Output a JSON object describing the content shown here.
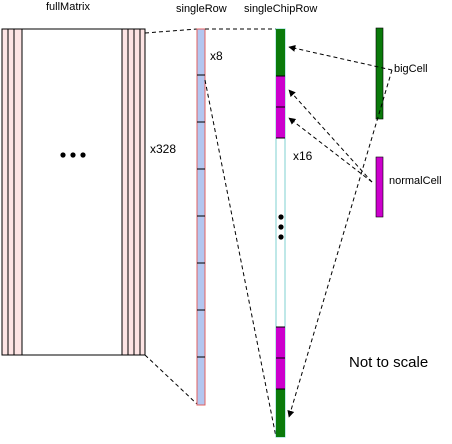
{
  "labels": {
    "full_matrix": "fullMatrix",
    "single_row": "singleRow",
    "single_chip_row": "singleChipRow",
    "big_cell": "bigCell",
    "normal_cell": "normalCell",
    "row_count": "x328",
    "chips_per_row": "x8",
    "normal_cells_per_chip": "x16",
    "scale_note": "Not to scale"
  },
  "colors": {
    "matrix_edge_fill": "#fde4e4",
    "single_row_fill": "#b3c6f0",
    "big_cell_fill": "#0a7a0a",
    "normal_cell_fill": "#cc00cc",
    "chip_row_border": "#7fd0d0",
    "border_red": "#e06060"
  }
}
